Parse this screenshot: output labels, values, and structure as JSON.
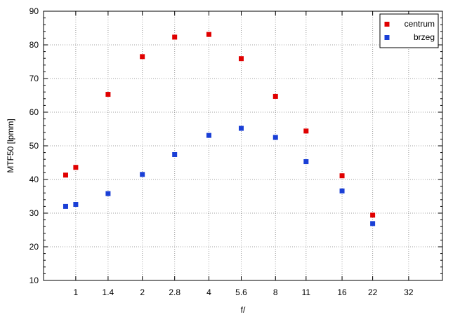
{
  "chart_data": {
    "type": "scatter",
    "title": "",
    "xlabel": "f/",
    "ylabel": "MTF50 [lpmm]",
    "x_scale": "log",
    "categories": [
      "1",
      "1.4",
      "2",
      "2.8",
      "4",
      "5.6",
      "8",
      "11",
      "16",
      "22",
      "32"
    ],
    "ylim": [
      10,
      90
    ],
    "yticks": [
      10,
      20,
      30,
      40,
      50,
      60,
      70,
      80,
      90
    ],
    "grid": true,
    "legend_position": "top-right",
    "series": [
      {
        "name": "centrum",
        "color": "#e00000",
        "marker": "square",
        "points": [
          {
            "x": 0.9,
            "y": 41.3
          },
          {
            "x": 1.0,
            "y": 43.6
          },
          {
            "x": 1.4,
            "y": 65.3
          },
          {
            "x": 2.0,
            "y": 76.5
          },
          {
            "x": 2.8,
            "y": 82.3
          },
          {
            "x": 4.0,
            "y": 83.1
          },
          {
            "x": 5.6,
            "y": 75.9
          },
          {
            "x": 8.0,
            "y": 64.7
          },
          {
            "x": 11.0,
            "y": 54.4
          },
          {
            "x": 16.0,
            "y": 41.1
          },
          {
            "x": 22.0,
            "y": 29.4
          }
        ]
      },
      {
        "name": "brzeg",
        "color": "#1a3fd6",
        "marker": "square",
        "points": [
          {
            "x": 0.9,
            "y": 32.0
          },
          {
            "x": 1.0,
            "y": 32.6
          },
          {
            "x": 1.4,
            "y": 35.8
          },
          {
            "x": 2.0,
            "y": 41.5
          },
          {
            "x": 2.8,
            "y": 47.4
          },
          {
            "x": 4.0,
            "y": 53.1
          },
          {
            "x": 5.6,
            "y": 55.2
          },
          {
            "x": 8.0,
            "y": 52.5
          },
          {
            "x": 11.0,
            "y": 45.3
          },
          {
            "x": 16.0,
            "y": 36.6
          },
          {
            "x": 22.0,
            "y": 26.9
          }
        ]
      }
    ]
  }
}
